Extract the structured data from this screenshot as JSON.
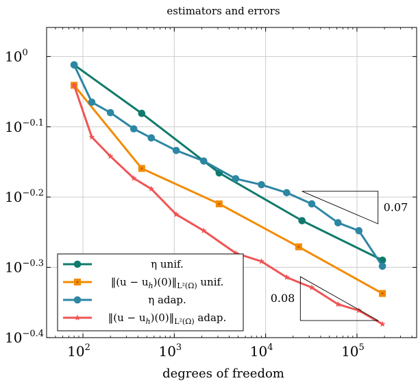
{
  "chart_data": {
    "type": "line",
    "title": "estimators and errors",
    "xlabel": "degrees of freedom",
    "ylabel": "",
    "xscale": "log",
    "yscale": "log",
    "xlim": [
      40,
      450000
    ],
    "ylim": [
      0.398,
      1.1
    ],
    "grid": true,
    "legend_position": "bottom-left",
    "x_ticks": [
      {
        "value": 100,
        "base": "10",
        "exp": "2"
      },
      {
        "value": 1000,
        "base": "10",
        "exp": "3"
      },
      {
        "value": 10000,
        "base": "10",
        "exp": "4"
      },
      {
        "value": 100000,
        "base": "10",
        "exp": "5"
      }
    ],
    "y_ticks": [
      {
        "value": 1.0,
        "base": "10",
        "exp": "0"
      },
      {
        "value": 0.7943,
        "base": "10",
        "exp": "−0.1"
      },
      {
        "value": 0.631,
        "base": "10",
        "exp": "−0.2"
      },
      {
        "value": 0.5012,
        "base": "10",
        "exp": "−0.3"
      },
      {
        "value": 0.3981,
        "base": "10",
        "exp": "−0.4"
      }
    ],
    "series": [
      {
        "name": "η unif.",
        "legend": [
          "η unif."
        ],
        "color": "#0f7a6c",
        "marker": "circle",
        "x": [
          80,
          440,
          3100,
          25000,
          190000
        ],
        "y": [
          0.973,
          0.83,
          0.683,
          0.584,
          0.513
        ]
      },
      {
        "name": "‖(u − u_h)(0)‖_{L²(Ω)} unif.",
        "legend": [
          "‖(u − u",
          "h",
          ")(0)‖",
          "L²(Ω)",
          " unif."
        ],
        "color": "#f28b00",
        "marker": "square",
        "x": [
          80,
          440,
          3100,
          23000,
          190000
        ],
        "y": [
          0.91,
          0.693,
          0.617,
          0.536,
          0.46
        ]
      },
      {
        "name": "η adap.",
        "legend": [
          "η adap."
        ],
        "color": "#2d86a3",
        "marker": "circle",
        "x": [
          80,
          125,
          200,
          360,
          560,
          1050,
          2100,
          4700,
          9000,
          17000,
          32000,
          62000,
          105000,
          190000
        ],
        "y": [
          0.973,
          0.861,
          0.832,
          0.789,
          0.766,
          0.735,
          0.71,
          0.67,
          0.657,
          0.64,
          0.617,
          0.58,
          0.565,
          0.503
        ]
      },
      {
        "name": "‖(u − u_h)(0)‖_{L²(Ω)} adap.",
        "legend": [
          "‖(u − u",
          "h",
          ")(0)‖",
          "L²(Ω)",
          " adap."
        ],
        "color": "#f05454",
        "marker": "star",
        "x": [
          80,
          125,
          200,
          360,
          560,
          1050,
          2100,
          4700,
          9000,
          17000,
          32000,
          62000,
          105000,
          190000
        ],
        "y": [
          0.91,
          0.768,
          0.721,
          0.671,
          0.648,
          0.596,
          0.565,
          0.525,
          0.511,
          0.485,
          0.469,
          0.444,
          0.435,
          0.416
        ]
      }
    ],
    "annotations": [
      {
        "text": "0.07",
        "kind": "slope-triangle",
        "x1": 25000,
        "x2": 170000,
        "y_low": 0.578,
        "y_high": 0.643
      },
      {
        "text": "0.08",
        "kind": "slope-triangle",
        "x1": 24000,
        "x2": 170000,
        "y_low": 0.421,
        "y_high": 0.486
      }
    ]
  }
}
